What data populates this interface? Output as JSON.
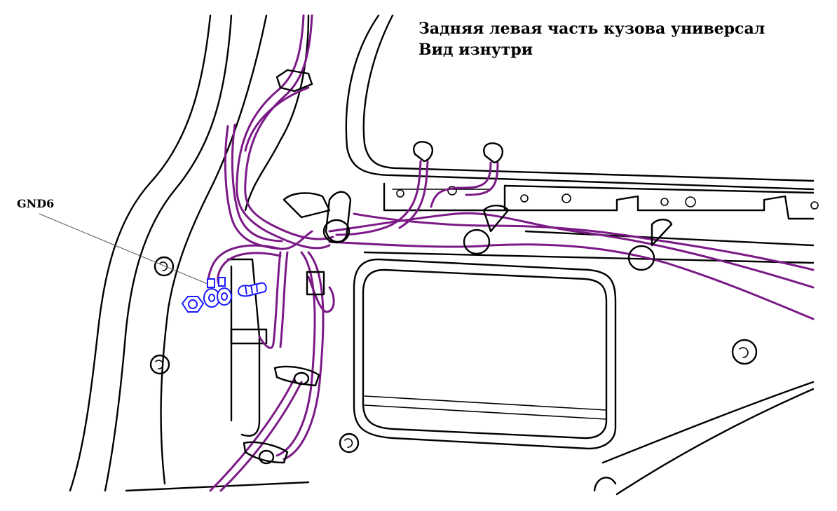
{
  "title": {
    "line1": "Задняя левая часть кузова универсал",
    "line2": "Вид изнутри"
  },
  "callouts": {
    "ground_label": "GND6"
  },
  "colors": {
    "wiring": "#7b1a86",
    "ground_hardware": "#1a1aff",
    "outline": "#000000"
  }
}
